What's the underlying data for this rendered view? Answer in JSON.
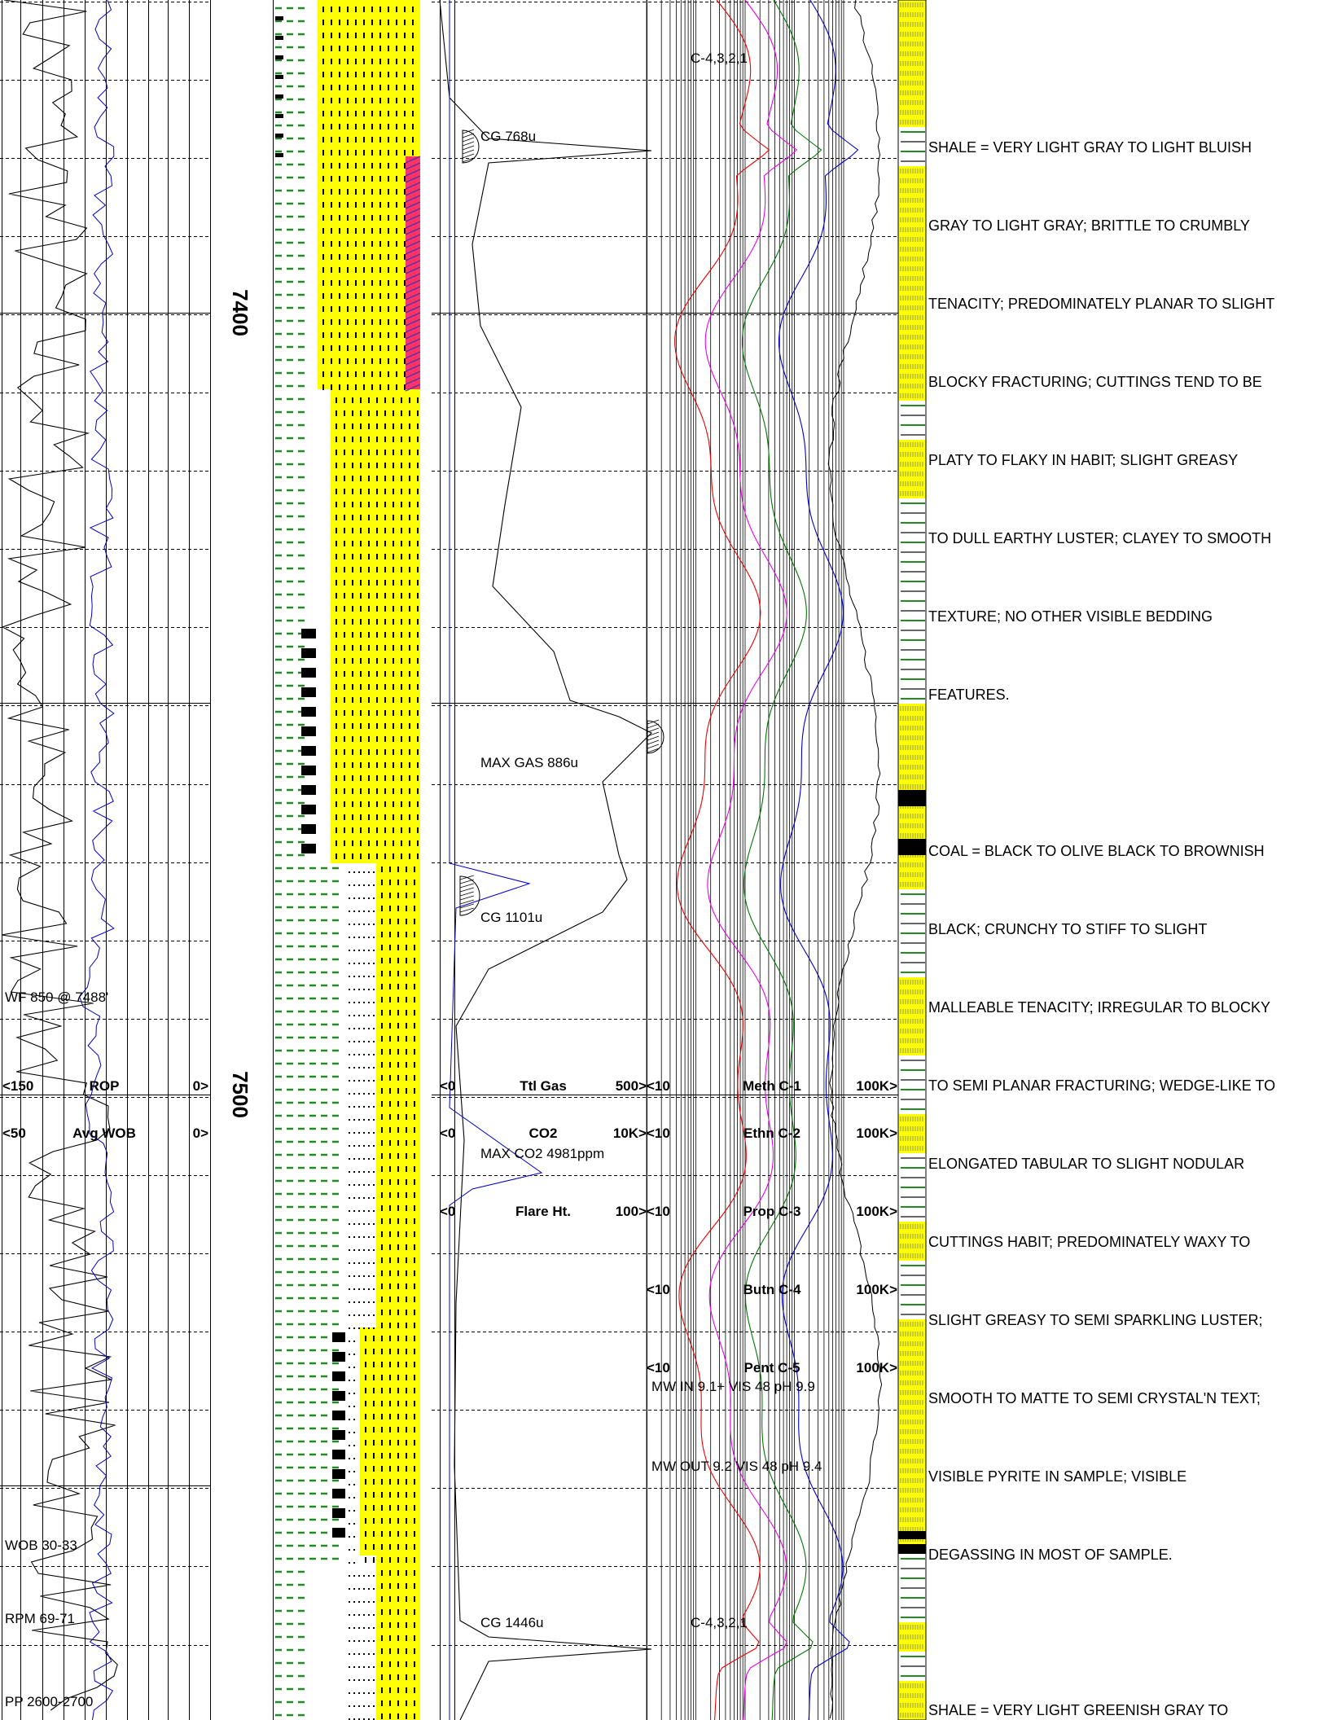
{
  "depth_labels": [
    "7400",
    "7500"
  ],
  "ann_ropwob": [
    "WF 850 @ 7488'",
    "WOB 30-33",
    "RPM 69-71",
    "PP 2600-2700"
  ],
  "scale_ropwob": [
    {
      "left": "<150",
      "name": "ROP",
      "right": "0>"
    },
    {
      "left": "<50",
      "name": "Avg WOB",
      "right": "0>"
    }
  ],
  "ann_gas": [
    "CG 768u",
    "MAX GAS 886u",
    "CG 1101u",
    "MAX CO2 4981ppm",
    "CG 1446u"
  ],
  "scale_gas": [
    {
      "left": "<0",
      "name": "Ttl Gas",
      "right": "500>"
    },
    {
      "left": "<0",
      "name": "CO2",
      "right": "10K>"
    },
    {
      "left": "<0",
      "name": "Flare Ht.",
      "right": "100>"
    }
  ],
  "ann_chroma": [
    "C-4,3,2,1",
    "MW IN 9.1+ VIS 48 pH 9.9",
    "MW OUT 9.2 VIS 48 pH 9.4",
    "C-4,3,2,1"
  ],
  "scale_chroma": [
    {
      "left": "<10",
      "name": "Meth C-1",
      "right": "100K>"
    },
    {
      "left": "<10",
      "name": "Ethn C-2",
      "right": "100K>"
    },
    {
      "left": "<10",
      "name": "Prop C-3",
      "right": "100K>"
    },
    {
      "left": "<10",
      "name": "Butn C-4",
      "right": "100K>"
    },
    {
      "left": "<10",
      "name": "Pent C-5",
      "right": "100K>"
    }
  ],
  "descriptions": [
    "SHALE = VERY LIGHT GRAY TO LIGHT BLUISH",
    "GRAY TO LIGHT GRAY; BRITTLE TO CRUMBLY",
    "TENACITY; PREDOMINATELY PLANAR TO SLIGHT",
    "BLOCKY FRACTURING; CUTTINGS TEND TO BE",
    "PLATY TO FLAKY IN HABIT; SLIGHT GREASY",
    "TO DULL EARTHY LUSTER; CLAYEY TO SMOOTH",
    "TEXTURE; NO OTHER VISIBLE BEDDING",
    "FEATURES.",
    "COAL = BLACK TO OLIVE BLACK TO BROWNISH",
    "BLACK; CRUNCHY TO STIFF TO SLIGHT",
    "MALLEABLE TENACITY; IRREGULAR TO BLOCKY",
    "TO SEMI PLANAR FRACTURING; WEDGE-LIKE TO",
    "ELONGATED TABULAR TO SLIGHT NODULAR",
    "CUTTINGS HABIT; PREDOMINATELY WAXY TO",
    "SLIGHT GREASY TO SEMI SPARKLING LUSTER;",
    "SMOOTH TO MATTE TO SEMI CRYSTAL'N TEXT;",
    "VISIBLE PYRITE IN SAMPLE; VISIBLE",
    "DEGASSING IN MOST OF SAMPLE.",
    "SHALE = VERY LIGHT GREENISH GRAY TO"
  ],
  "colors": {
    "lith_yellow": "#ffff00",
    "shale_green": "#228b22",
    "coal_black": "#000000",
    "fracture_red": "#ff3366",
    "c1_curve": "#0000cc",
    "c2_curve": "#007700",
    "c3_curve": "#ee00ee",
    "c4_curve": "#ee0000",
    "grid": "#000000"
  }
}
